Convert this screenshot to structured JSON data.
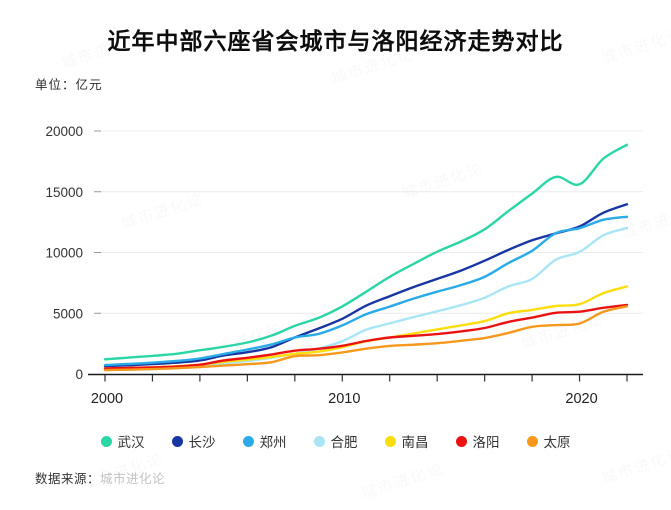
{
  "title": "近年中部六座省会城市与洛阳经济走势对比",
  "unit_label": "单位：亿元",
  "source": {
    "prefix": "数据来源：",
    "name": "城市进化论"
  },
  "watermark_text": "城市进化论",
  "colors": {
    "axis": "#1a1a1a",
    "grid": "#ececec",
    "tick": "#333333",
    "axis_label": "#333333"
  },
  "chart_data": {
    "type": "line",
    "title": "近年中部六座省会城市与洛阳经济走势对比",
    "ylabel": "亿元",
    "xlabel": "",
    "ylim": [
      0,
      20000
    ],
    "yticks": [
      0,
      5000,
      10000,
      15000,
      20000
    ],
    "xtick_label_years": [
      2000,
      2010,
      2020
    ],
    "xtick_minor_step": 2,
    "grid": "horizontal-faint",
    "legend_position": "bottom",
    "x": [
      2000,
      2001,
      2002,
      2003,
      2004,
      2005,
      2006,
      2007,
      2008,
      2009,
      2010,
      2011,
      2012,
      2013,
      2014,
      2015,
      2016,
      2017,
      2018,
      2019,
      2020,
      2021,
      2022
    ],
    "series": [
      {
        "name": "武汉",
        "color": "#2bd6a6",
        "values": [
          1207,
          1348,
          1493,
          1662,
          1956,
          2238,
          2591,
          3141,
          3960,
          4621,
          5566,
          6762,
          8004,
          9051,
          10069,
          10906,
          11913,
          13410,
          14847,
          16223,
          15616,
          17717,
          18866
        ]
      },
      {
        "name": "长沙",
        "color": "#1736a3",
        "values": [
          656,
          728,
          813,
          928,
          1109,
          1520,
          1791,
          2190,
          3001,
          3745,
          4547,
          5619,
          6400,
          7153,
          7825,
          8510,
          9324,
          10210,
          11003,
          11574,
          12143,
          13271,
          13966
        ]
      },
      {
        "name": "郑州",
        "color": "#2aabe8",
        "values": [
          738,
          829,
          928,
          1074,
          1273,
          1650,
          2014,
          2421,
          3004,
          3300,
          4000,
          4913,
          5547,
          6202,
          6777,
          7315,
          7994,
          9130,
          10143,
          11590,
          12003,
          12691,
          12935
        ]
      },
      {
        "name": "合肥",
        "color": "#a9e6f5",
        "values": [
          325,
          364,
          413,
          478,
          589,
          854,
          1074,
          1334,
          1665,
          2102,
          2702,
          3637,
          4164,
          4673,
          5158,
          5660,
          6274,
          7213,
          7823,
          9409,
          10046,
          11413,
          12013
        ]
      },
      {
        "name": "南昌",
        "color": "#fedd0c",
        "values": [
          428,
          485,
          552,
          640,
          770,
          1008,
          1185,
          1390,
          1660,
          1838,
          2207,
          2689,
          3001,
          3336,
          3668,
          4000,
          4355,
          5003,
          5274,
          5596,
          5746,
          6651,
          7204
        ]
      },
      {
        "name": "洛阳",
        "color": "#ea1313",
        "values": [
          457,
          500,
          545,
          608,
          766,
          1112,
          1332,
          1596,
          1920,
          2075,
          2321,
          2717,
          3001,
          3141,
          3285,
          3509,
          3782,
          4290,
          4640,
          5035,
          5128,
          5447,
          5675
        ]
      },
      {
        "name": "太原",
        "color": "#f6981c",
        "values": [
          325,
          358,
          404,
          480,
          577,
          693,
          807,
          967,
          1468,
          1545,
          1778,
          2080,
          2311,
          2412,
          2531,
          2735,
          2955,
          3382,
          3884,
          4028,
          4153,
          5121,
          5571
        ]
      }
    ]
  }
}
